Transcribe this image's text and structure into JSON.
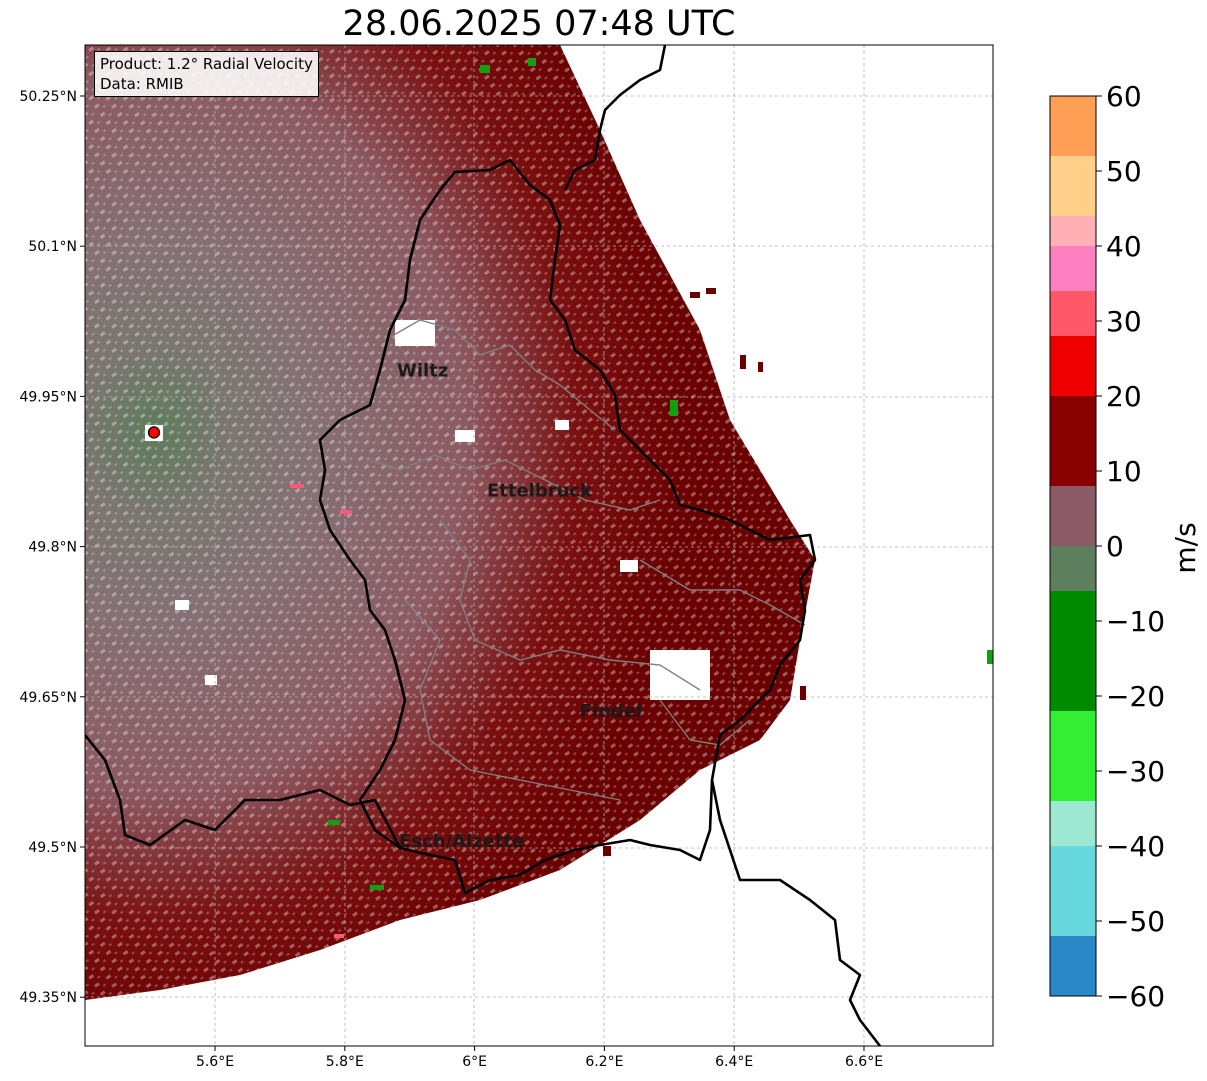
{
  "title": "28.06.2025 07:48 UTC",
  "info": {
    "product": "Product: 1.2° Radial Velocity",
    "data": "Data: RMIB"
  },
  "axes": {
    "lon_ticks": [
      "5.6°E",
      "5.8°E",
      "6°E",
      "6.2°E",
      "6.4°E",
      "6.6°E"
    ],
    "lat_ticks": [
      "50.25°N",
      "50.1°N",
      "49.95°N",
      "49.8°N",
      "49.65°N",
      "49.5°N",
      "49.35°N"
    ],
    "lon_values": [
      5.6,
      5.8,
      6.0,
      6.2,
      6.4,
      6.6
    ],
    "lat_values": [
      50.25,
      50.1,
      49.95,
      49.8,
      49.65,
      49.5,
      49.35
    ],
    "lon_range": [
      5.4,
      6.8
    ],
    "lat_range": [
      49.3,
      50.3
    ],
    "grid": true
  },
  "cities": [
    {
      "name": "Wiltz",
      "lon": 5.92,
      "lat": 49.97
    },
    {
      "name": "Ettelbruck",
      "lon": 6.1,
      "lat": 49.85
    },
    {
      "name": "Findel",
      "lon": 6.21,
      "lat": 49.63
    },
    {
      "name": "Esch/Alzette",
      "lon": 5.98,
      "lat": 49.5
    }
  ],
  "radar_site": {
    "lon": 5.506,
    "lat": 49.914,
    "color": "#ff0000"
  },
  "colorbar": {
    "unit": "m/s",
    "range": [
      -60,
      60
    ],
    "ticks": [
      "60",
      "50",
      "40",
      "30",
      "20",
      "10",
      "0",
      "−10",
      "−20",
      "−30",
      "−40",
      "−50",
      "−60"
    ],
    "tick_values": [
      60,
      50,
      40,
      30,
      20,
      10,
      0,
      -10,
      -20,
      -30,
      -40,
      -50,
      -60
    ],
    "bands": [
      {
        "from": 52,
        "to": 60,
        "color": "#ff9f55"
      },
      {
        "from": 44,
        "to": 52,
        "color": "#ffd08a"
      },
      {
        "from": 40,
        "to": 44,
        "color": "#ffb0b4"
      },
      {
        "from": 34,
        "to": 40,
        "color": "#ff80c0"
      },
      {
        "from": 28,
        "to": 34,
        "color": "#ff5868"
      },
      {
        "from": 20,
        "to": 28,
        "color": "#ee0000"
      },
      {
        "from": 8,
        "to": 20,
        "color": "#880000"
      },
      {
        "from": 0,
        "to": 8,
        "color": "#8a5a66"
      },
      {
        "from": -6,
        "to": 0,
        "color": "#5d7f5d"
      },
      {
        "from": -22,
        "to": -6,
        "color": "#008a00"
      },
      {
        "from": -34,
        "to": -22,
        "color": "#33ee33"
      },
      {
        "from": -40,
        "to": -34,
        "color": "#9de8d0"
      },
      {
        "from": -52,
        "to": -40,
        "color": "#66d8de"
      },
      {
        "from": -60,
        "to": -52,
        "color": "#2a88c8"
      }
    ]
  },
  "colors": {
    "approaching": "#5a7a55",
    "near_zero": "#857075",
    "receding_weak": "#8c5a62",
    "receding_strong": "#6a0000",
    "border_national": "#000000",
    "border_canton": "#808080"
  }
}
